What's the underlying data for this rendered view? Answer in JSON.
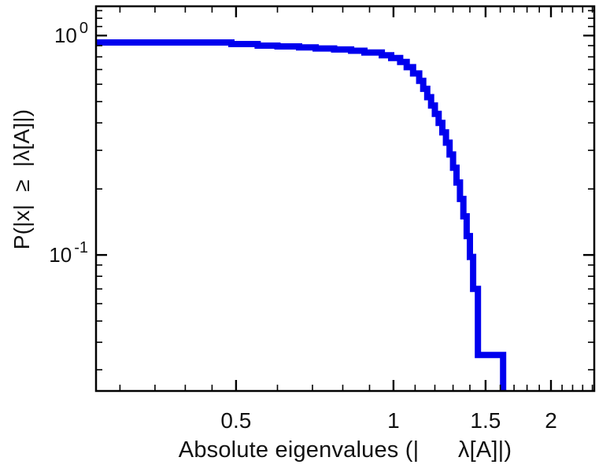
{
  "page": {
    "background": "#ffffff"
  },
  "chart_data": {
    "type": "line",
    "style": "step-ccdf",
    "title": "",
    "xlabel": "Absolute eigenvalues (|      λ[A]|)",
    "ylabel": "P(|x|  ≥  |λ[A]|)",
    "xscale": "log",
    "yscale": "log",
    "xlim": [
      0.27,
      2.42
    ],
    "ylim": [
      0.024,
      1.36
    ],
    "grid": false,
    "legend": "none",
    "frame_color": "#000000",
    "x_major_ticks": [
      {
        "value": 0.5,
        "label": "0.5"
      },
      {
        "value": 1,
        "label": "1"
      },
      {
        "value": 1.5,
        "label": "1.5"
      },
      {
        "value": 2,
        "label": "2"
      }
    ],
    "x_minor_ticks": [
      0.3,
      0.35,
      0.4,
      0.45,
      0.6,
      0.7,
      0.8,
      0.9,
      1.1,
      1.2,
      1.3,
      1.4,
      1.6,
      1.7,
      1.8,
      1.9,
      2.1,
      2.2,
      2.3,
      2.4
    ],
    "y_major_ticks": [
      {
        "value": 1,
        "base": "10",
        "exponent": "0"
      },
      {
        "value": 0.1,
        "base": "10",
        "exponent": "-1"
      }
    ],
    "y_minor_ticks": [
      1.3,
      1.2,
      1.1,
      0.9,
      0.8,
      0.7,
      0.6,
      0.5,
      0.4,
      0.3,
      0.2,
      0.09,
      0.08,
      0.07,
      0.06,
      0.05,
      0.04,
      0.03
    ],
    "series": [
      {
        "name": "P(|x| ≥ |λ[A]|)",
        "color": "#0000ee",
        "line_width": 8,
        "steps": [
          [
            0.27,
            0.93
          ],
          [
            0.49,
            0.915
          ],
          [
            0.55,
            0.9
          ],
          [
            0.6,
            0.893
          ],
          [
            0.66,
            0.884
          ],
          [
            0.71,
            0.874
          ],
          [
            0.77,
            0.864
          ],
          [
            0.83,
            0.853
          ],
          [
            0.88,
            0.838
          ],
          [
            0.95,
            0.814
          ],
          [
            0.99,
            0.79
          ],
          [
            1.03,
            0.758
          ],
          [
            1.06,
            0.718
          ],
          [
            1.09,
            0.672
          ],
          [
            1.12,
            0.622
          ],
          [
            1.14,
            0.572
          ],
          [
            1.16,
            0.524
          ],
          [
            1.18,
            0.48
          ],
          [
            1.2,
            0.44
          ],
          [
            1.22,
            0.4
          ],
          [
            1.24,
            0.362
          ],
          [
            1.26,
            0.325
          ],
          [
            1.28,
            0.287
          ],
          [
            1.3,
            0.25
          ],
          [
            1.32,
            0.214
          ],
          [
            1.34,
            0.18
          ],
          [
            1.36,
            0.15
          ],
          [
            1.38,
            0.122
          ],
          [
            1.4,
            0.098
          ],
          [
            1.42,
            0.07
          ],
          [
            1.45,
            0.035
          ],
          [
            1.62,
            0.012
          ]
        ]
      }
    ]
  }
}
